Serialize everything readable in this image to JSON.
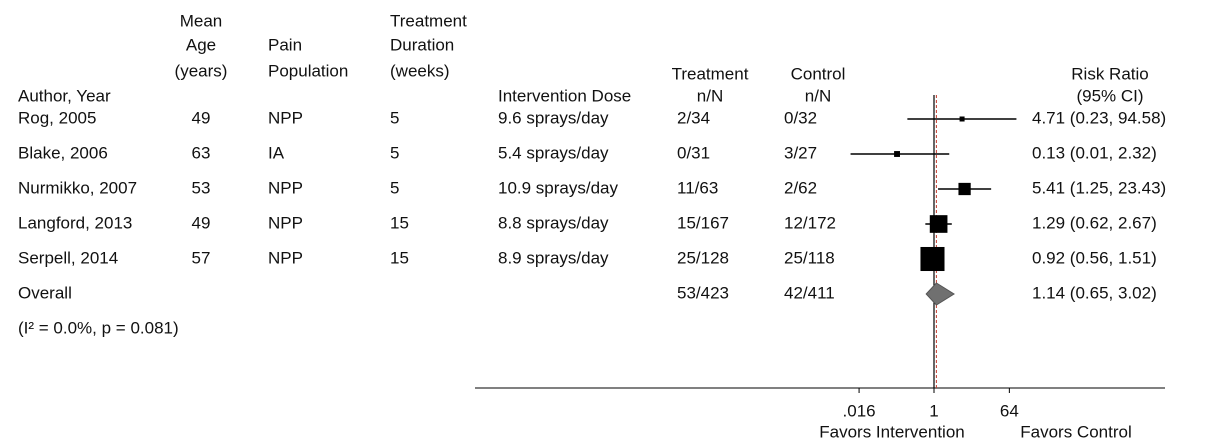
{
  "chart_data": {
    "type": "forest",
    "headers": {
      "author": [
        "Author, Year"
      ],
      "age": [
        "Mean",
        "Age",
        "(years)"
      ],
      "population": [
        "Pain",
        "Population"
      ],
      "duration": [
        "Treatment",
        "Duration",
        "(weeks)"
      ],
      "dose": [
        "Intervention Dose"
      ],
      "treatment": [
        "Treatment",
        "n/N"
      ],
      "control": [
        "Control",
        "n/N"
      ],
      "rr": [
        "Risk Ratio",
        "(95% CI)"
      ]
    },
    "studies": [
      {
        "author": "Rog, 2005",
        "age": 49,
        "population": "NPP",
        "duration": 5,
        "dose": "9.6 sprays/day",
        "treatment": "2/34",
        "control": "0/32",
        "rr": 4.71,
        "lo": 0.23,
        "hi": 94.58,
        "label": "4.71 (0.23, 94.58)"
      },
      {
        "author": "Blake, 2006",
        "age": 63,
        "population": "IA",
        "duration": 5,
        "dose": "5.4 sprays/day",
        "treatment": "0/31",
        "control": "3/27",
        "rr": 0.13,
        "lo": 0.01,
        "hi": 2.32,
        "label": "0.13 (0.01, 2.32)"
      },
      {
        "author": "Nurmikko, 2007",
        "age": 53,
        "population": "NPP",
        "duration": 5,
        "dose": "10.9 sprays/day",
        "treatment": "11/63",
        "control": "2/62",
        "rr": 5.41,
        "lo": 1.25,
        "hi": 23.43,
        "label": "5.41 (1.25, 23.43)"
      },
      {
        "author": "Langford, 2013",
        "age": 49,
        "population": "NPP",
        "duration": 15,
        "dose": "8.8 sprays/day",
        "treatment": "15/167",
        "control": "12/172",
        "rr": 1.29,
        "lo": 0.62,
        "hi": 2.67,
        "label": "1.29 (0.62, 2.67)"
      },
      {
        "author": "Serpell, 2014",
        "age": 57,
        "population": "NPP",
        "duration": 15,
        "dose": "8.9 sprays/day",
        "treatment": "25/128",
        "control": "25/118",
        "rr": 0.92,
        "lo": 0.56,
        "hi": 1.51,
        "label": "0.92 (0.56, 1.51)"
      }
    ],
    "overall": {
      "author": "Overall",
      "treatment": "53/423",
      "control": "42/411",
      "rr": 1.14,
      "lo": 0.65,
      "hi": 3.02,
      "label": "1.14 (0.65, 3.02)"
    },
    "heterogeneity": "(I² = 0.0%, p = 0.081)",
    "xscale": "log",
    "xlim": [
      0.005,
      200
    ],
    "xticks": [
      {
        "value": 0.016,
        "label": ".016"
      },
      1,
      64
    ],
    "reference": 1,
    "xlabels": [
      "Favors Intervention",
      "Favors Control"
    ],
    "square_color": "#000000",
    "diamond_color": "#707070",
    "overall_line_color": "#c0392b"
  }
}
